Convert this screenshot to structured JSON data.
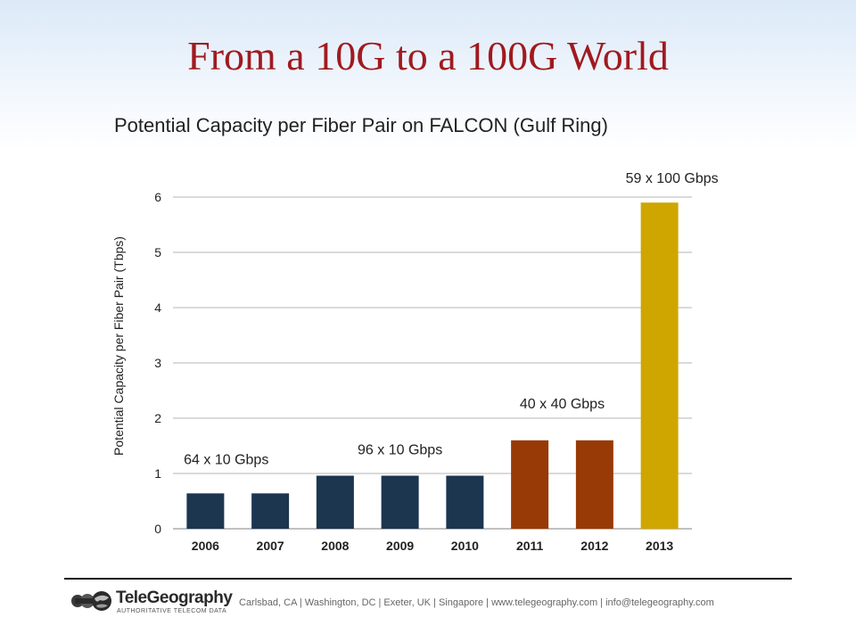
{
  "slide": {
    "title": "From a 10G to a 100G World",
    "subtitle": "Potential Capacity per Fiber Pair on FALCON (Gulf Ring)"
  },
  "chart_data": {
    "type": "bar",
    "title": "Potential Capacity per Fiber Pair on FALCON (Gulf Ring)",
    "xlabel": "",
    "ylabel": "Potential Capacity per Fiber Pair (Tbps)",
    "ylim": [
      0,
      6
    ],
    "yticks": [
      0,
      1,
      2,
      3,
      4,
      5,
      6
    ],
    "grid": true,
    "categories": [
      "2006",
      "2007",
      "2008",
      "2009",
      "2010",
      "2011",
      "2012",
      "2013"
    ],
    "values": [
      0.64,
      0.64,
      0.96,
      0.96,
      0.96,
      1.6,
      1.6,
      5.9
    ],
    "bar_colors": [
      "#1c3650",
      "#1c3650",
      "#1c3650",
      "#1c3650",
      "#1c3650",
      "#973a05",
      "#973a05",
      "#cfa600"
    ],
    "annotations": [
      {
        "text": "64 x 10 Gbps",
        "category": "2006",
        "span": [
          "2006",
          "2007"
        ]
      },
      {
        "text": "96 x 10 Gbps",
        "span": [
          "2008",
          "2010"
        ]
      },
      {
        "text": "40 x 40 Gbps",
        "span": [
          "2011",
          "2012"
        ]
      },
      {
        "text": "59 x 100 Gbps",
        "span": [
          "2013",
          "2013"
        ]
      }
    ]
  },
  "footer": {
    "logo_name": "TeleGeography",
    "logo_tagline": "AUTHORITATIVE TELECOM DATA",
    "contact": "Carlsbad, CA | Washington, DC | Exeter, UK | Singapore | www.telegeography.com | info@telegeography.com"
  },
  "colors": {
    "title": "#a01a1f",
    "bar_10g": "#1c3650",
    "bar_40g": "#973a05",
    "bar_100g": "#cfa600",
    "grid": "#c4c4c4"
  }
}
